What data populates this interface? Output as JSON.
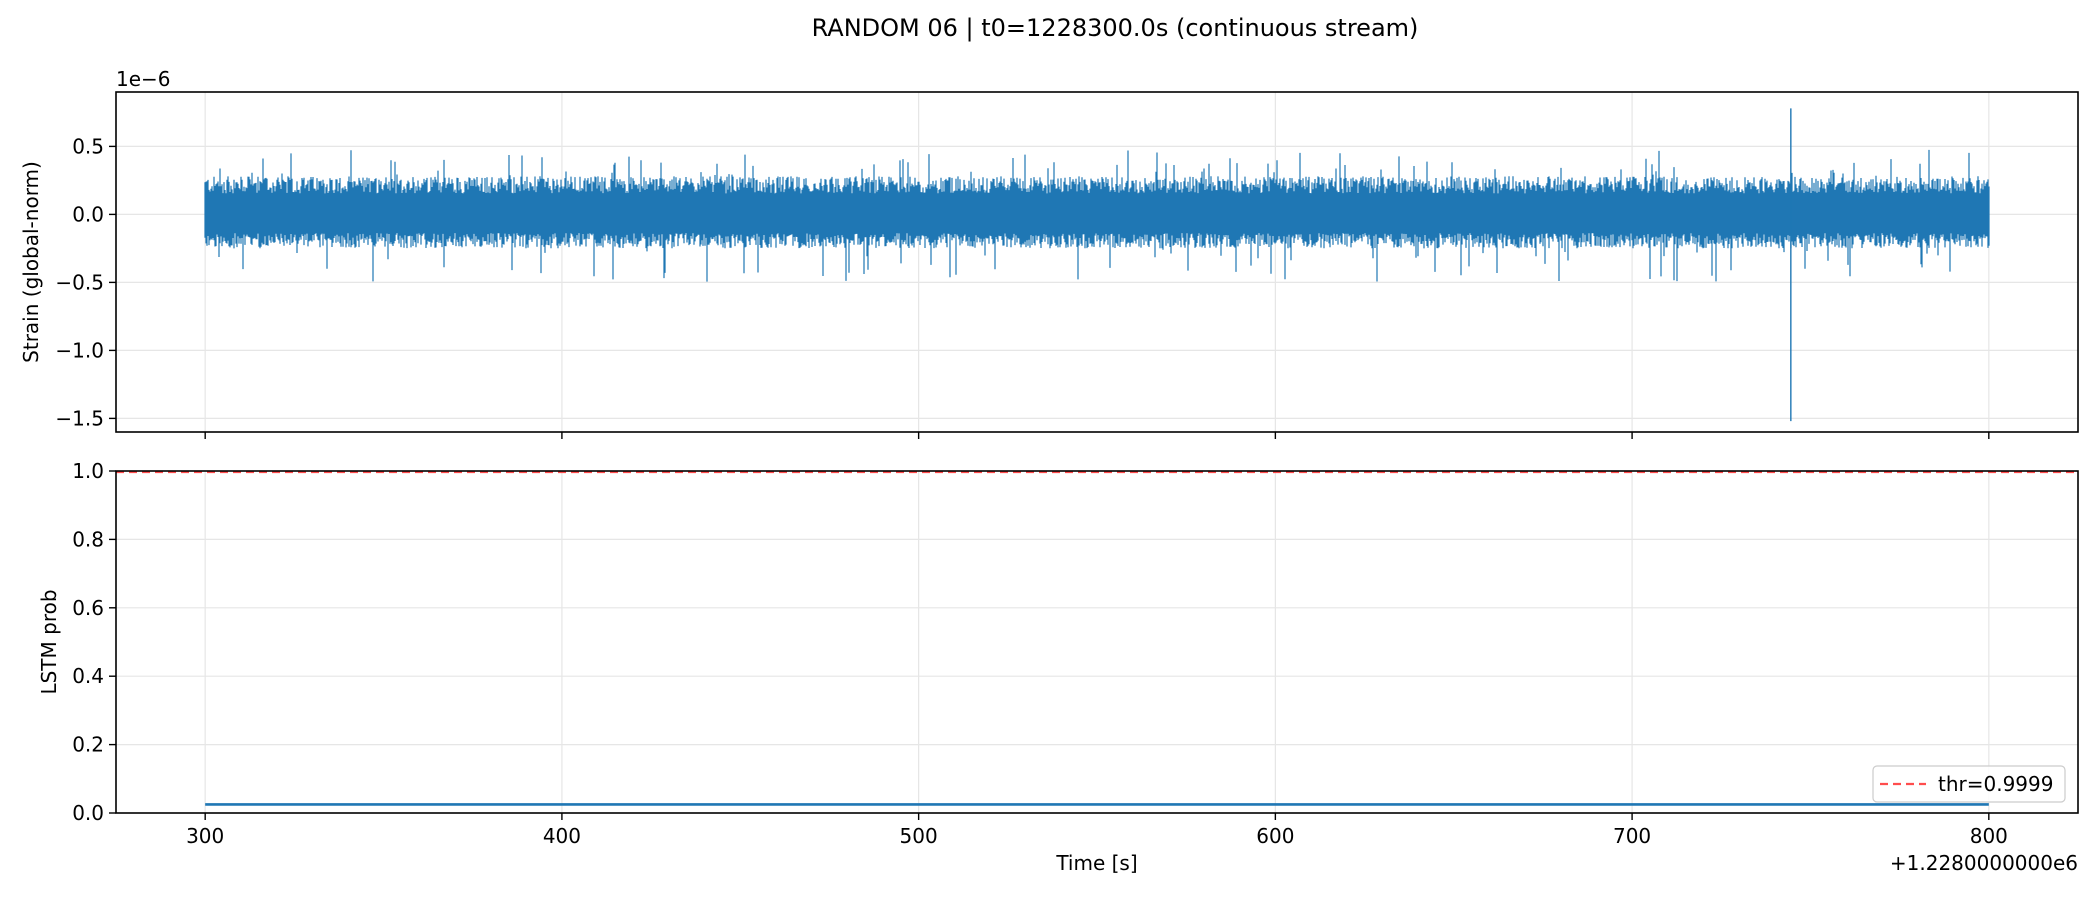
{
  "title": "RANDOM 06 | t0=1228300.0s (continuous stream)",
  "xlabel": "Time [s]",
  "x_offset_label": "+1.2280000000e6",
  "chart_data": [
    {
      "type": "line",
      "name": "strain-panel",
      "ylabel": "Strain (global-norm)",
      "y_scale_label": "1e−6",
      "xlim": [
        1228275,
        1228825
      ],
      "ylim": [
        -1.6e-06,
        9e-07
      ],
      "x_ticks": [
        1228300,
        1228400,
        1228500,
        1228600,
        1228700,
        1228800
      ],
      "x_tick_labels": [
        "300",
        "400",
        "500",
        "600",
        "700",
        "800"
      ],
      "y_ticks": [
        5e-07,
        0.0,
        -5e-07,
        -1e-06,
        -1.5e-06
      ],
      "y_tick_labels": [
        "0.5",
        "0.0",
        "−0.5",
        "−1.0",
        "−1.5"
      ],
      "grid": true,
      "series": [
        {
          "color": "#1f77b4",
          "x_start": 1228300,
          "x_end": 1228800,
          "noise_envelope": {
            "typical_min": -2.5e-07,
            "typical_max": 2.8e-07,
            "extreme_min": -5e-07,
            "extreme_max": 4.8e-07
          },
          "glitch": {
            "x": 1228744.5,
            "max": 7.8e-07,
            "min": -1.52e-06
          }
        }
      ]
    },
    {
      "type": "line",
      "name": "lstm-panel",
      "ylabel": "LSTM prob",
      "xlim": [
        1228275,
        1228825
      ],
      "ylim": [
        0.0,
        1.0
      ],
      "x_ticks": [
        1228300,
        1228400,
        1228500,
        1228600,
        1228700,
        1228800
      ],
      "x_tick_labels": [
        "300",
        "400",
        "500",
        "600",
        "700",
        "800"
      ],
      "y_ticks": [
        0.0,
        0.2,
        0.4,
        0.6,
        0.8,
        1.0
      ],
      "y_tick_labels": [
        "0.0",
        "0.2",
        "0.4",
        "0.6",
        "0.8",
        "1.0"
      ],
      "grid": true,
      "series": [
        {
          "color": "#1f77b4",
          "x_start": 1228300,
          "x_end": 1228800,
          "value": 0.025
        }
      ],
      "threshold": {
        "label": "thr=0.9999",
        "value": 0.9999,
        "color": "#ff4d4d"
      },
      "legend": "lower-right"
    }
  ]
}
